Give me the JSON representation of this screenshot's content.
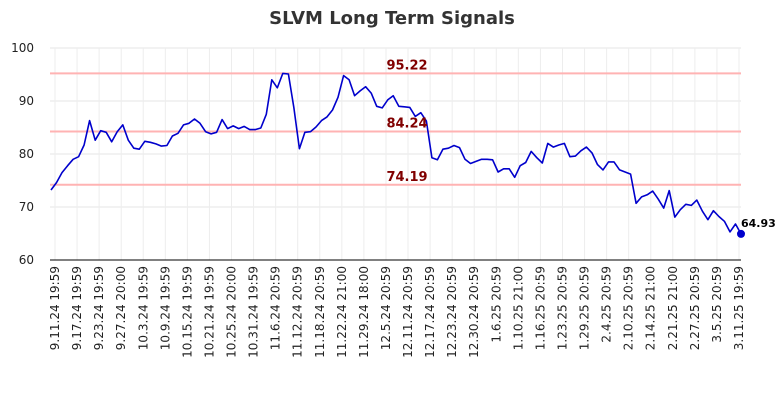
{
  "chart_data": {
    "type": "line",
    "title": "SLVM Long Term Signals",
    "ylim": [
      60,
      100
    ],
    "y_ticks": [
      60,
      70,
      80,
      90,
      100
    ],
    "x_tick_labels": [
      "9.11.24 19:59",
      "9.17.24 19:59",
      "9.23.24 19:59",
      "9.27.24 20:00",
      "10.3.24 19:59",
      "10.9.24 19:59",
      "10.15.24 19:59",
      "10.21.24 19:59",
      "10.25.24 20:00",
      "10.31.24 19:59",
      "11.6.24 20:59",
      "11.12.24 20:59",
      "11.18.24 20:59",
      "11.22.24 21:00",
      "11.29.24 18:00",
      "12.5.24 20:59",
      "12.11.24 20:59",
      "12.17.24 20:59",
      "12.23.24 20:59",
      "12.30.24 20:59",
      "1.6.25 20:59",
      "1.10.25 21:00",
      "1.16.25 20:59",
      "1.23.25 20:59",
      "1.29.25 20:59",
      "2.4.25 20:59",
      "2.10.25 20:59",
      "2.14.25 21:00",
      "2.21.25 21:00",
      "2.27.25 20:59",
      "3.5.25 20:59",
      "3.11.25 19:59"
    ],
    "levels": [
      {
        "value": 95.22,
        "label": "95.22"
      },
      {
        "value": 84.24,
        "label": "84.24"
      },
      {
        "value": 74.19,
        "label": "74.19"
      }
    ],
    "series": [
      {
        "color": "#0000cc",
        "values": [
          73.2,
          74.6,
          76.5,
          77.8,
          79.0,
          79.5,
          81.7,
          86.3,
          82.6,
          84.4,
          84.1,
          82.3,
          84.2,
          85.5,
          82.6,
          81.1,
          80.9,
          82.4,
          82.2,
          81.9,
          81.5,
          81.6,
          83.4,
          83.9,
          85.5,
          85.8,
          86.6,
          85.8,
          84.2,
          83.8,
          84.1,
          86.5,
          84.8,
          85.3,
          84.8,
          85.2,
          84.6,
          84.6,
          84.9,
          87.5,
          94.0,
          92.5,
          95.2,
          95.1,
          88.7,
          81.0,
          84.1,
          84.2,
          85.1,
          86.3,
          87.0,
          88.3,
          90.7,
          94.8,
          94.0,
          91.0,
          91.9,
          92.7,
          91.5,
          89.0,
          88.7,
          90.2,
          91.0,
          89.0,
          88.9,
          88.8,
          87.1,
          87.8,
          86.2,
          79.3,
          78.9,
          80.9,
          81.1,
          81.6,
          81.2,
          79.0,
          78.2,
          78.6,
          79.0,
          79.0,
          78.9,
          76.6,
          77.2,
          77.2,
          75.6,
          77.8,
          78.4,
          80.5,
          79.3,
          78.3,
          82.0,
          81.3,
          81.7,
          82.0,
          79.5,
          79.6,
          80.6,
          81.3,
          80.2,
          78.0,
          77.0,
          78.5,
          78.5,
          77.0,
          76.6,
          76.2,
          70.7,
          71.9,
          72.3,
          73.0,
          71.5,
          69.8,
          73.1,
          68.1,
          69.5,
          70.5,
          70.3,
          71.3,
          69.2,
          67.6,
          69.3,
          68.2,
          67.3,
          65.3,
          66.8,
          64.93
        ],
        "last_label": "64.93"
      }
    ],
    "grid": true
  }
}
